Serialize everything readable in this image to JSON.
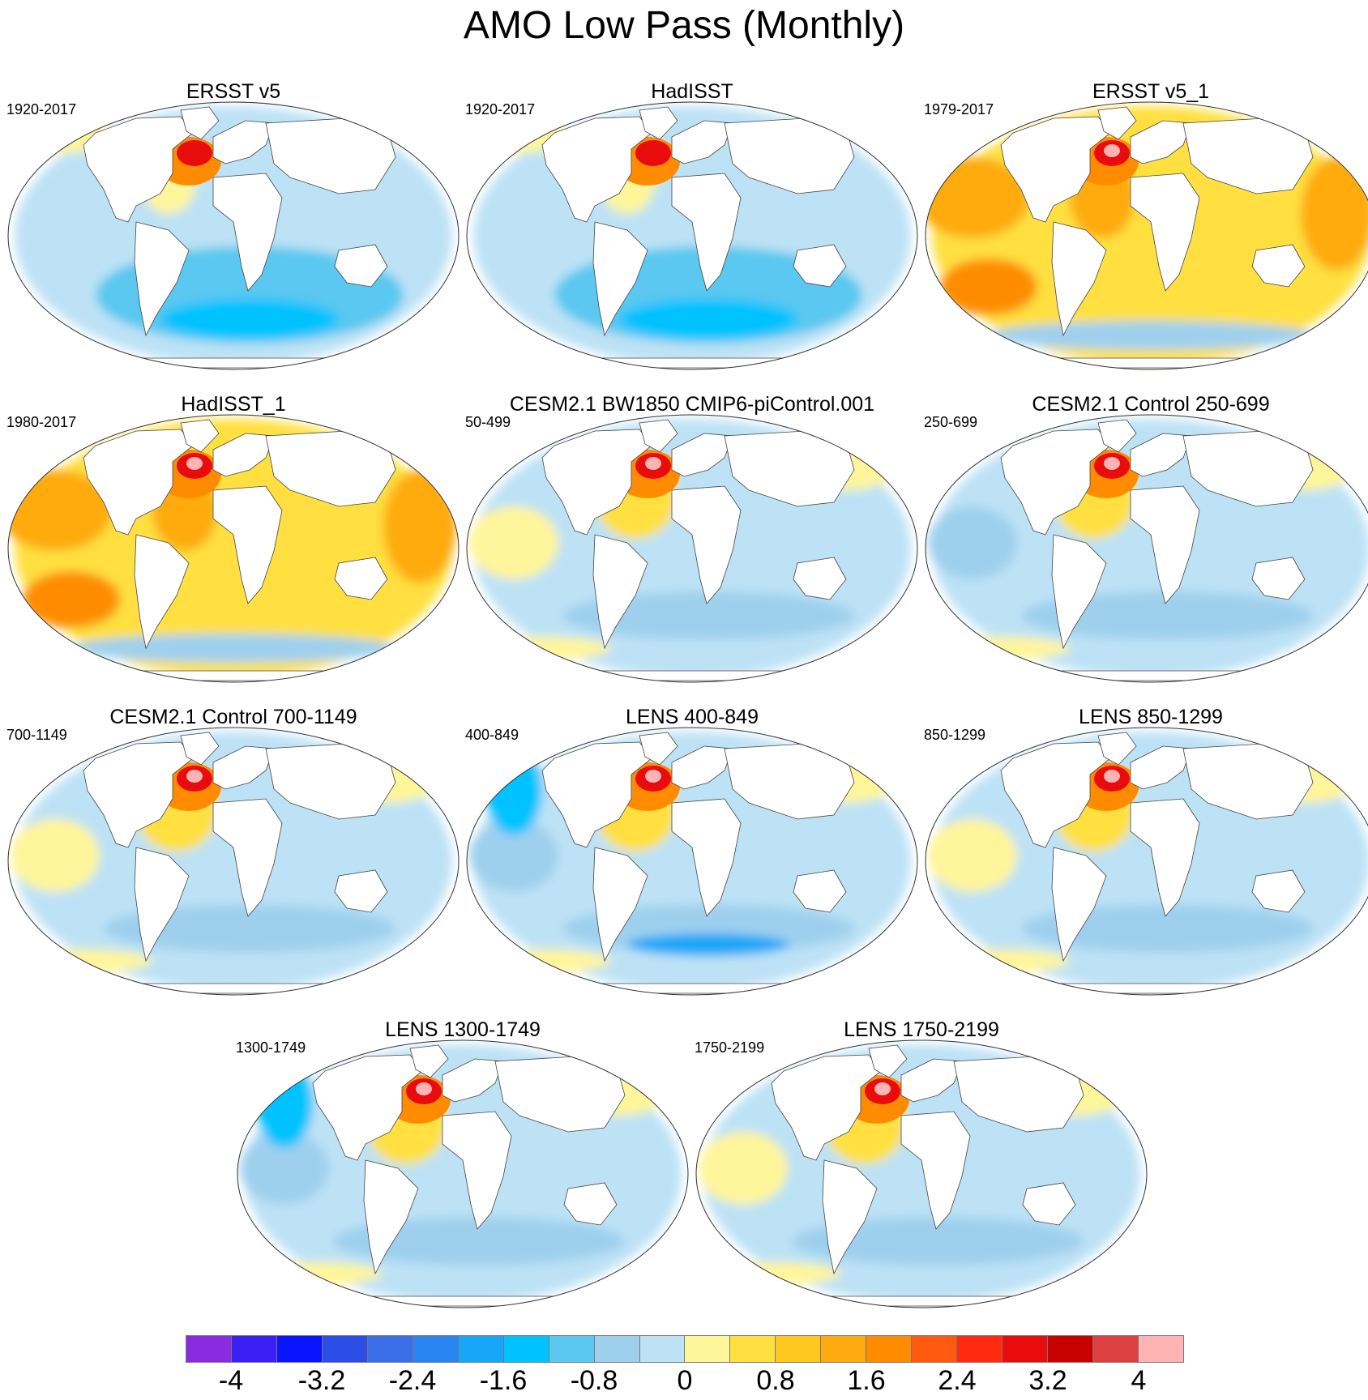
{
  "figure": {
    "title": "AMO Low Pass (Monthly)",
    "projection": "global map (Robinson-like)",
    "variable": "SST regression / anomaly"
  },
  "panels": [
    {
      "title": "ERSST v5",
      "period": "1920-2017",
      "pattern": "cool"
    },
    {
      "title": "HadISST",
      "period": "1920-2017",
      "pattern": "cool"
    },
    {
      "title": "ERSST v5_1",
      "period": "1979-2017",
      "pattern": "warm"
    },
    {
      "title": "HadISST_1",
      "period": "1980-2017",
      "pattern": "warm"
    },
    {
      "title": "CESM2.1 BW1850 CMIP6-piControl.001",
      "period": "50-499",
      "pattern": "model"
    },
    {
      "title": "CESM2.1 Control 250-699",
      "period": "250-699",
      "pattern": "model"
    },
    {
      "title": "CESM2.1 Control 700-1149",
      "period": "700-1149",
      "pattern": "model"
    },
    {
      "title": "LENS 400-849",
      "period": "400-849",
      "pattern": "model"
    },
    {
      "title": "LENS 850-1299",
      "period": "850-1299",
      "pattern": "model"
    },
    {
      "title": "LENS 1300-1749",
      "period": "1300-1749",
      "pattern": "model"
    },
    {
      "title": "LENS 1750-2199",
      "period": "1750-2199",
      "pattern": "model"
    }
  ],
  "colorbar": {
    "colors": [
      "#8a2be2",
      "#3c1ff5",
      "#0a14ff",
      "#2a4ee6",
      "#3a6ee8",
      "#2884f0",
      "#18a6f8",
      "#00c2ff",
      "#5ac8f0",
      "#9ed0ee",
      "#bde2f5",
      "#fff59a",
      "#ffe040",
      "#ffc820",
      "#ffaa10",
      "#ff8c00",
      "#ff5a10",
      "#ff2a10",
      "#e80c0c",
      "#c80000",
      "#dc4040",
      "#ffb4b4"
    ],
    "tick_labels": [
      "-4",
      "-3.2",
      "-2.4",
      "-1.6",
      "-0.8",
      "0",
      "0.8",
      "1.6",
      "2.4",
      "3.2",
      "4"
    ]
  },
  "colors": {
    "land": "#ffffff",
    "coast": "#444444",
    "ocean_base": "#bde2f5"
  }
}
